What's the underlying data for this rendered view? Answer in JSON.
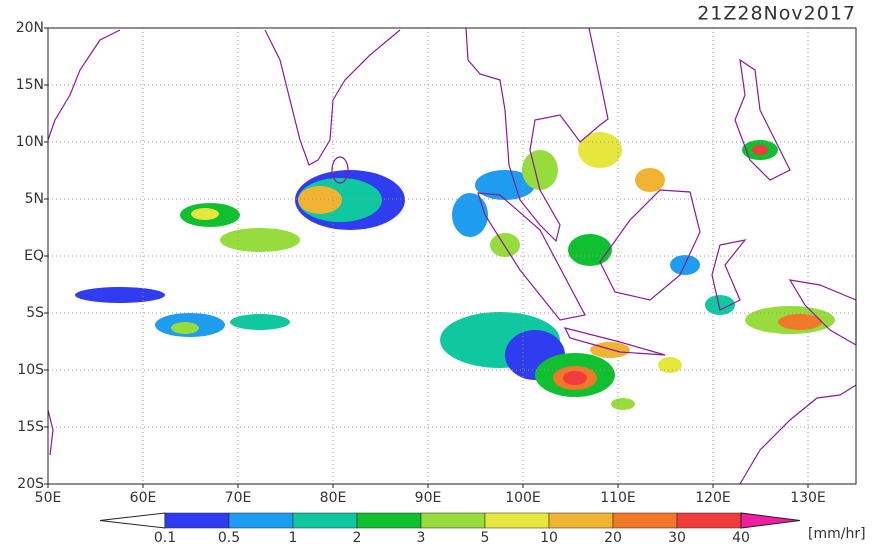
{
  "header": {
    "title": "21Z28Nov2017"
  },
  "map": {
    "lat_labels": [
      "20N",
      "15N",
      "10N",
      "5N",
      "EQ",
      "5S",
      "10S",
      "15S",
      "20S"
    ],
    "lon_labels": [
      "50E",
      "60E",
      "70E",
      "80E",
      "90E",
      "100E",
      "110E",
      "120E",
      "130E"
    ]
  },
  "colorbar": {
    "labels": [
      "0.1",
      "0.5",
      "1",
      "2",
      "3",
      "5",
      "10",
      "20",
      "30",
      "40"
    ],
    "colors": [
      "#2f3cf0",
      "#1e9cf0",
      "#0fc8a0",
      "#10c030",
      "#96dc3c",
      "#e6e63c",
      "#f0b432",
      "#f07828",
      "#f03c3c"
    ],
    "under_color": "#ffffff",
    "over_color": "#f01ea0",
    "unit": "[mm/hr]"
  }
}
